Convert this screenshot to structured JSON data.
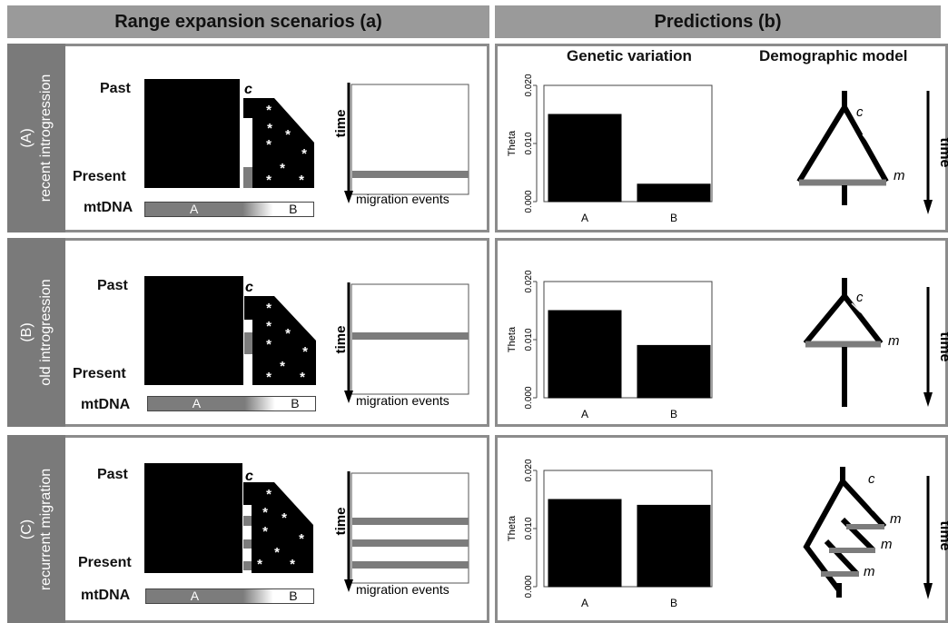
{
  "headers": {
    "left": "Range expansion scenarios (a)",
    "right": "Predictions (b)"
  },
  "subheaders": {
    "genetic_variation": "Genetic variation",
    "demographic_model": "Demographic model"
  },
  "common": {
    "past": "Past",
    "present": "Present",
    "mtdna": "mtDNA",
    "c": "c",
    "m": "m",
    "hap_a": "A",
    "hap_b": "B",
    "time": "time",
    "migration_events": "migration events",
    "theta": "Theta",
    "ticks": [
      "0.000",
      "0.010",
      "0.020"
    ]
  },
  "rows": [
    {
      "id": "A",
      "label_line1": "(A)",
      "label_line2": "recent introgression",
      "bar_categories": [
        "A",
        "B"
      ],
      "theta_values": [
        0.015,
        0.003
      ]
    },
    {
      "id": "B",
      "label_line1": "(B)",
      "label_line2": "old introgression",
      "bar_categories": [
        "A",
        "B"
      ],
      "theta_values": [
        0.015,
        0.009
      ]
    },
    {
      "id": "C",
      "label_line1": "(C)",
      "label_line2": "recurrent migration",
      "bar_categories": [
        "A",
        "B"
      ],
      "theta_values": [
        0.015,
        0.014
      ]
    }
  ],
  "colors": {
    "black": "#000000",
    "gray": "#7c7c7c",
    "header": "#9a9a9a",
    "sidebar": "#7a7a7a",
    "border": "#8c8c8c"
  },
  "chart_data": [
    {
      "type": "bar",
      "categories": [
        "A",
        "B"
      ],
      "values": [
        0.015,
        0.003
      ],
      "ylabel": "Theta",
      "ylim": [
        0,
        0.02
      ]
    },
    {
      "type": "bar",
      "categories": [
        "A",
        "B"
      ],
      "values": [
        0.015,
        0.009
      ],
      "ylabel": "Theta",
      "ylim": [
        0,
        0.02
      ]
    },
    {
      "type": "bar",
      "categories": [
        "A",
        "B"
      ],
      "values": [
        0.015,
        0.014
      ],
      "ylabel": "Theta",
      "ylim": [
        0,
        0.02
      ]
    }
  ]
}
